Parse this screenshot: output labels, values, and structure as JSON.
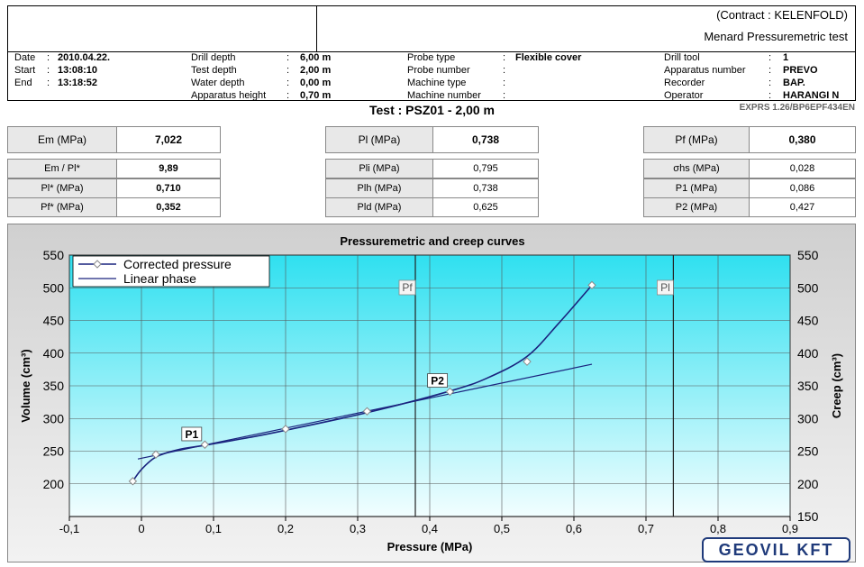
{
  "header": {
    "contract": "(Contract : KELENFOLD)",
    "test_type": "Menard Pressuremetric test",
    "col1": [
      {
        "label": "Date",
        "sep": ":",
        "value": "2010.04.22."
      },
      {
        "label": "Start",
        "sep": ":",
        "value": "13:08:10"
      },
      {
        "label": "End",
        "sep": ":",
        "value": "13:18:52"
      }
    ],
    "col2": [
      {
        "label": "Drill depth",
        "sep": ":",
        "value": "6,00 m"
      },
      {
        "label": "Test depth",
        "sep": ":",
        "value": "2,00 m"
      },
      {
        "label": "Water depth",
        "sep": ":",
        "value": "0,00 m"
      },
      {
        "label": "Apparatus height",
        "sep": ":",
        "value": "0,70 m"
      }
    ],
    "col3": [
      {
        "label": "Probe type",
        "sep": ":",
        "value": "Flexible cover"
      },
      {
        "label": "Probe number",
        "sep": ":",
        "value": ""
      },
      {
        "label": "Machine type",
        "sep": ":",
        "value": ""
      },
      {
        "label": "Machine number",
        "sep": ":",
        "value": ""
      }
    ],
    "col4": [
      {
        "label": "Drill tool",
        "sep": ":",
        "value": "1"
      },
      {
        "label": "Apparatus number",
        "sep": ":",
        "value": "PREVO"
      },
      {
        "label": "Recorder",
        "sep": ":",
        "value": "BAP."
      },
      {
        "label": "Operator",
        "sep": ":",
        "value": "HARANGI N"
      }
    ]
  },
  "test_title": "Test : PSZ01 - 2,00 m",
  "version": "EXPRS 1.26/BP6EPF434EN",
  "results": {
    "em_label": "Em (MPa)",
    "em_value": "7,022",
    "pl_label": "Pl (MPa)",
    "pl_value": "0,738",
    "pf_label": "Pf (MPa)",
    "pf_value": "0,380",
    "left": [
      {
        "label": "Em / Pl*",
        "value": "9,89"
      },
      {
        "label": "Pl* (MPa)",
        "value": "0,710"
      },
      {
        "label": "Pf* (MPa)",
        "value": "0,352"
      }
    ],
    "mid": [
      {
        "label": "Pli (MPa)",
        "value": "0,795"
      },
      {
        "label": "Plh (MPa)",
        "value": "0,738"
      },
      {
        "label": "Pld (MPa)",
        "value": "0,625"
      }
    ],
    "right": [
      {
        "label": "σhs (MPa)",
        "value": "0,028"
      },
      {
        "label": "P1 (MPa)",
        "value": "0,086"
      },
      {
        "label": "P2 (MPa)",
        "value": "0,427"
      }
    ]
  },
  "logo_text": "GEOVIL KFT",
  "chart_data": {
    "type": "line",
    "title": "Pressuremetric and creep curves",
    "xlabel": "Pressure (MPa)",
    "ylabel": "Volume (cm³)",
    "y2label": "Creep (cm³)",
    "xlim": [
      -0.1,
      0.9
    ],
    "ylim": [
      150,
      550
    ],
    "x_ticks": [
      -0.1,
      0,
      0.1,
      0.2,
      0.3,
      0.4,
      0.5,
      0.6,
      0.7,
      0.8,
      0.9
    ],
    "x_tick_labels": [
      "-0,1",
      "0",
      "0,1",
      "0,2",
      "0,3",
      "0,4",
      "0,5",
      "0,6",
      "0,7",
      "0,8",
      "0,9"
    ],
    "y_ticks": [
      200,
      250,
      300,
      350,
      400,
      450,
      500,
      550
    ],
    "y2_ticks": [
      150,
      200,
      250,
      300,
      350,
      400,
      450,
      500,
      550
    ],
    "grid": true,
    "legend_position": "top-left",
    "series": [
      {
        "name": "Corrected pressure",
        "kind": "points",
        "color": "#1a237e",
        "x": [
          -0.012,
          0.02,
          0.088,
          0.2,
          0.313,
          0.428,
          0.535,
          0.625
        ],
        "y": [
          204,
          245,
          260,
          284,
          311,
          341,
          387,
          504
        ]
      },
      {
        "name": "Corrected pressure curve",
        "kind": "curve",
        "color": "#1a237e",
        "x": [
          -0.012,
          0.0,
          0.02,
          0.05,
          0.088,
          0.15,
          0.2,
          0.313,
          0.428,
          0.48,
          0.535,
          0.58,
          0.625
        ],
        "y": [
          204,
          222,
          241,
          252,
          259,
          271,
          282,
          309,
          342,
          362,
          395,
          447,
          504
        ]
      },
      {
        "name": "Linear phase",
        "kind": "line",
        "color": "#1a237e",
        "x": [
          -0.005,
          0.625
        ],
        "y": [
          238,
          383
        ]
      }
    ],
    "annotations": [
      {
        "text": "P1",
        "x": 0.086,
        "y": 259
      },
      {
        "text": "P2",
        "x": 0.427,
        "y": 341
      },
      {
        "text": "Pf",
        "x": 0.38
      },
      {
        "text": "Pl",
        "x": 0.738
      }
    ],
    "colors": {
      "plot_bg_top": "#2fe0f0",
      "plot_bg_bottom": "#f2feff",
      "curve": "#1a237e"
    }
  }
}
